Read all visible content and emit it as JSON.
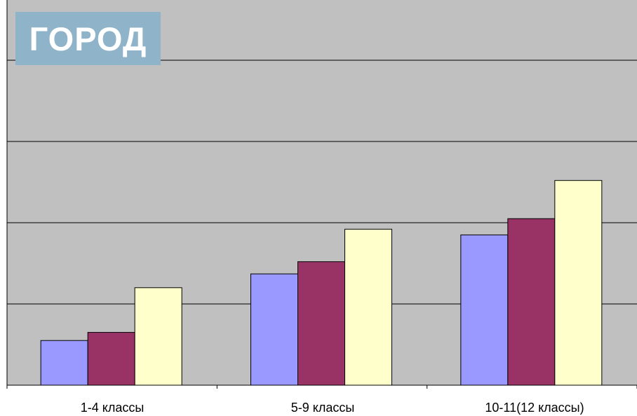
{
  "chart_data": {
    "type": "bar",
    "title": "ГОРОД",
    "categories": [
      "1-4 классы",
      "5-9 классы",
      "10-11(12 классы)"
    ],
    "series": [
      {
        "values": [
          0.55,
          1.37,
          1.85
        ]
      },
      {
        "values": [
          0.65,
          1.52,
          2.05
        ]
      },
      {
        "values": [
          1.2,
          1.92,
          2.52
        ]
      }
    ],
    "ylim": [
      0,
      5
    ],
    "grid": true,
    "colors": [
      "#9999ff",
      "#993366",
      "#ffffcc",
      "#c0c0c0"
    ]
  }
}
